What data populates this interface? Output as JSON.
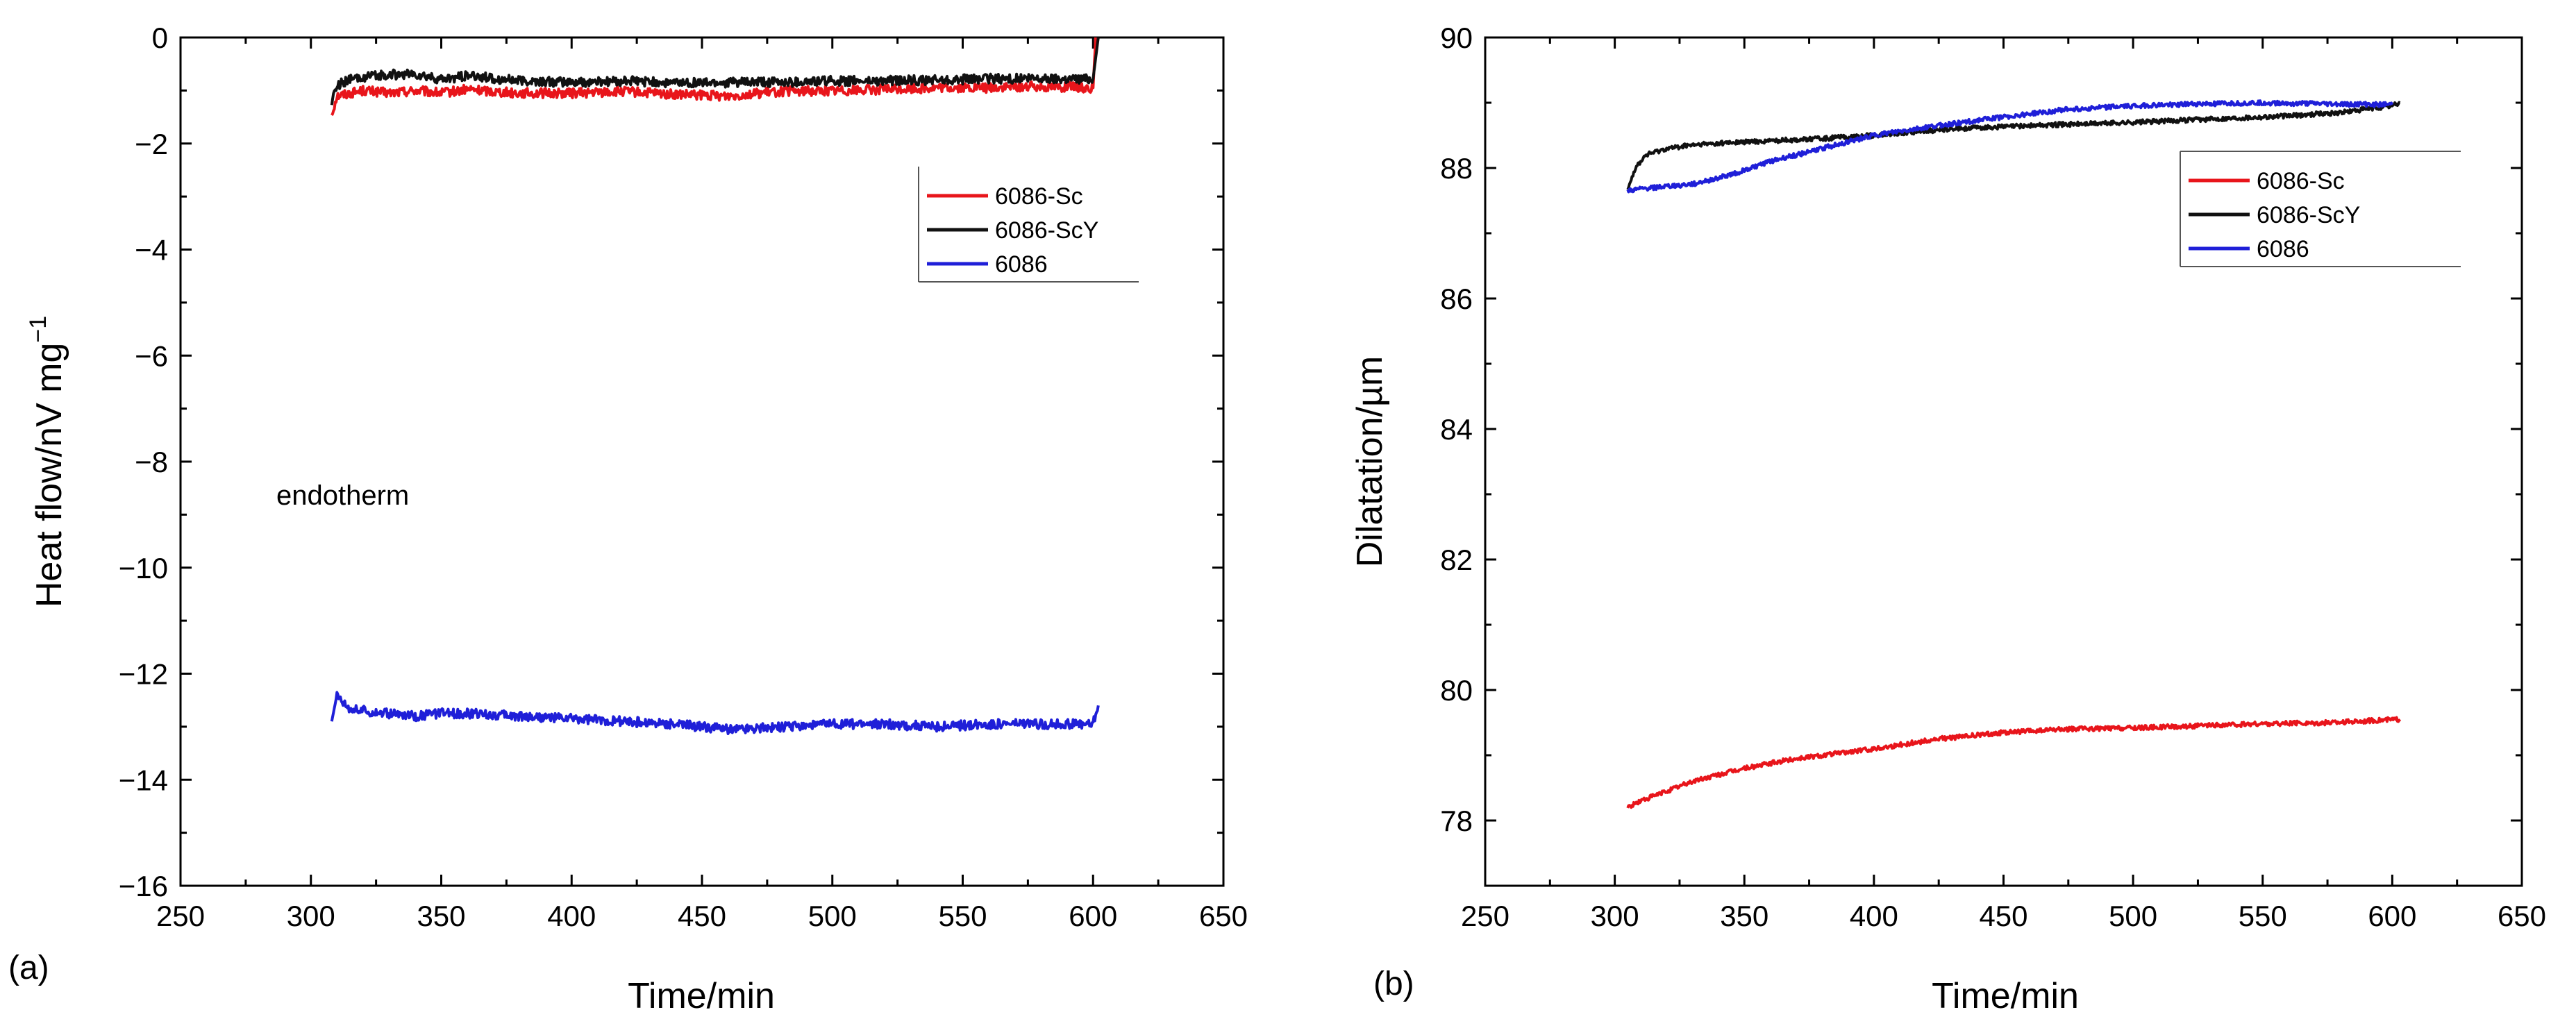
{
  "chart_data": [
    {
      "type": "line",
      "panel_label": "(a)",
      "xlabel": "Time/min",
      "ylabel": "Heat flow/nV mg",
      "ylabel_sup": "−1",
      "xlim": [
        250,
        650
      ],
      "ylim": [
        -16,
        0
      ],
      "xticks": [
        250,
        300,
        350,
        400,
        450,
        500,
        550,
        600,
        650
      ],
      "yticks": [
        0,
        -2,
        -4,
        -6,
        -8,
        -10,
        -12,
        -14,
        -16
      ],
      "xtick_labels": [
        "250",
        "300",
        "350",
        "400",
        "450",
        "500",
        "550",
        "600",
        "650"
      ],
      "ytick_labels": [
        "0",
        "−2",
        "−4",
        "−6",
        "−8",
        "−10",
        "−12",
        "−14",
        "−16"
      ],
      "annotation": "endotherm",
      "legend": {
        "location": "upper-right",
        "entries": [
          "6086-Sc",
          "6086-ScY",
          "6086"
        ]
      },
      "series": [
        {
          "name": "6086-Sc",
          "color": "#e8151b",
          "x": [
            308,
            310,
            315,
            320,
            330,
            340,
            350,
            360,
            380,
            400,
            420,
            440,
            460,
            480,
            500,
            520,
            540,
            560,
            580,
            600,
            601
          ],
          "y": [
            -1.45,
            -1.1,
            -1.05,
            -1.0,
            -1.05,
            -1.0,
            -1.05,
            -0.98,
            -1.05,
            -1.05,
            -1.02,
            -1.08,
            -1.1,
            -1.02,
            -1.0,
            -0.98,
            -0.95,
            -0.95,
            -0.92,
            -0.95,
            0.0
          ]
        },
        {
          "name": "6086-ScY",
          "color": "#111111",
          "x": [
            308,
            310,
            315,
            320,
            330,
            340,
            350,
            360,
            380,
            400,
            420,
            440,
            460,
            480,
            500,
            520,
            540,
            560,
            580,
            600,
            602
          ],
          "y": [
            -1.2,
            -0.9,
            -0.8,
            -0.75,
            -0.7,
            -0.7,
            -0.8,
            -0.72,
            -0.82,
            -0.85,
            -0.82,
            -0.85,
            -0.85,
            -0.85,
            -0.82,
            -0.82,
            -0.8,
            -0.78,
            -0.78,
            -0.78,
            0.0
          ]
        },
        {
          "name": "6086",
          "color": "#1f1fd8",
          "x": [
            308,
            310,
            312,
            315,
            320,
            330,
            340,
            350,
            360,
            380,
            400,
            420,
            440,
            460,
            480,
            500,
            520,
            540,
            560,
            580,
            600,
            602
          ],
          "y": [
            -12.9,
            -12.4,
            -12.5,
            -12.65,
            -12.7,
            -12.75,
            -12.8,
            -12.75,
            -12.75,
            -12.8,
            -12.85,
            -12.9,
            -12.95,
            -13.05,
            -13.0,
            -12.95,
            -12.95,
            -13.0,
            -12.95,
            -12.95,
            -12.95,
            -12.6
          ]
        }
      ]
    },
    {
      "type": "line",
      "panel_label": "(b)",
      "xlabel": "Time/min",
      "ylabel": "Dilatation/µm",
      "xlim": [
        250,
        650
      ],
      "ylim": [
        77,
        90
      ],
      "xticks": [
        250,
        300,
        350,
        400,
        450,
        500,
        550,
        600,
        650
      ],
      "yticks": [
        78,
        80,
        82,
        84,
        86,
        88,
        90
      ],
      "xtick_labels": [
        "250",
        "300",
        "350",
        "400",
        "450",
        "500",
        "550",
        "600",
        "650"
      ],
      "ytick_labels": [
        "78",
        "80",
        "82",
        "84",
        "86",
        "88",
        "90"
      ],
      "legend": {
        "location": "upper-right",
        "entries": [
          "6086-Sc",
          "6086-ScY",
          "6086"
        ]
      },
      "series": [
        {
          "name": "6086-Sc",
          "color": "#e8151b",
          "x": [
            305,
            310,
            320,
            330,
            350,
            370,
            400,
            425,
            450,
            475,
            500,
            525,
            550,
            575,
            603
          ],
          "y": [
            78.2,
            78.3,
            78.45,
            78.6,
            78.8,
            78.95,
            79.1,
            79.25,
            79.35,
            79.4,
            79.42,
            79.45,
            79.48,
            79.5,
            79.55
          ]
        },
        {
          "name": "6086-ScY",
          "color": "#111111",
          "x": [
            305,
            308,
            312,
            320,
            330,
            350,
            380,
            400,
            430,
            460,
            500,
            530,
            560,
            580,
            600,
            603
          ],
          "y": [
            87.7,
            88.0,
            88.2,
            88.3,
            88.35,
            88.4,
            88.45,
            88.5,
            88.6,
            88.65,
            88.7,
            88.75,
            88.8,
            88.85,
            88.95,
            89.0
          ]
        },
        {
          "name": "6086",
          "color": "#1f1fd8",
          "x": [
            305,
            315,
            330,
            345,
            360,
            380,
            400,
            425,
            450,
            475,
            500,
            525,
            550,
            575,
            600
          ],
          "y": [
            87.65,
            87.7,
            87.75,
            87.9,
            88.1,
            88.3,
            88.5,
            88.65,
            88.78,
            88.9,
            88.95,
            88.98,
            89.0,
            88.98,
            88.97
          ]
        }
      ]
    }
  ]
}
